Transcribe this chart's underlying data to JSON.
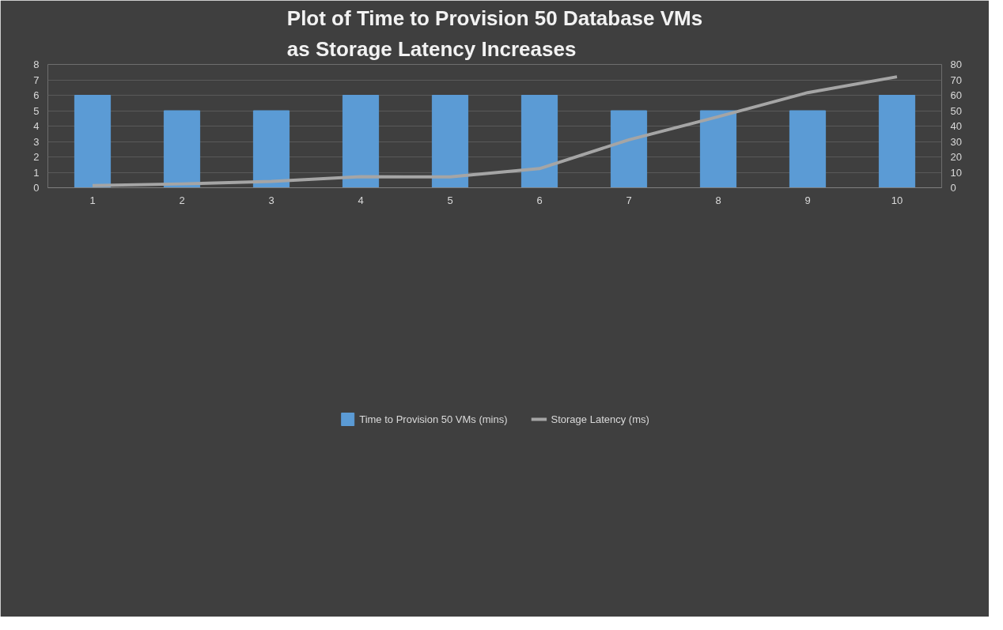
{
  "chart_data": {
    "type": "bar",
    "title": "Plot of Time to Provision 50 Database VMs\nas Storage Latency Increases",
    "categories": [
      "1",
      "2",
      "3",
      "4",
      "5",
      "6",
      "7",
      "8",
      "9",
      "10"
    ],
    "series": [
      {
        "name": "Time to Provision 50 VMs (mins)",
        "color": "#5b9bd5",
        "values": [
          6,
          5,
          5,
          6,
          6,
          6,
          5,
          5,
          5,
          6
        ]
      },
      {
        "name": "Storage Latency (ms)",
        "type": "line",
        "axis": "y2",
        "color": "#a5a5a5",
        "values": [
          1.4,
          2.5,
          4.1,
          7.2,
          7.0,
          12.4,
          31.1,
          46.1,
          61.7,
          72.0
        ]
      }
    ],
    "ylim": [
      0,
      8
    ],
    "yticks": [
      0,
      1,
      2,
      3,
      4,
      5,
      6,
      7,
      8
    ],
    "y2lim": [
      0,
      80
    ],
    "y2ticks": [
      0,
      10,
      20,
      30,
      40,
      50,
      60,
      70,
      80
    ],
    "grid": "y",
    "legend": "bottom"
  }
}
